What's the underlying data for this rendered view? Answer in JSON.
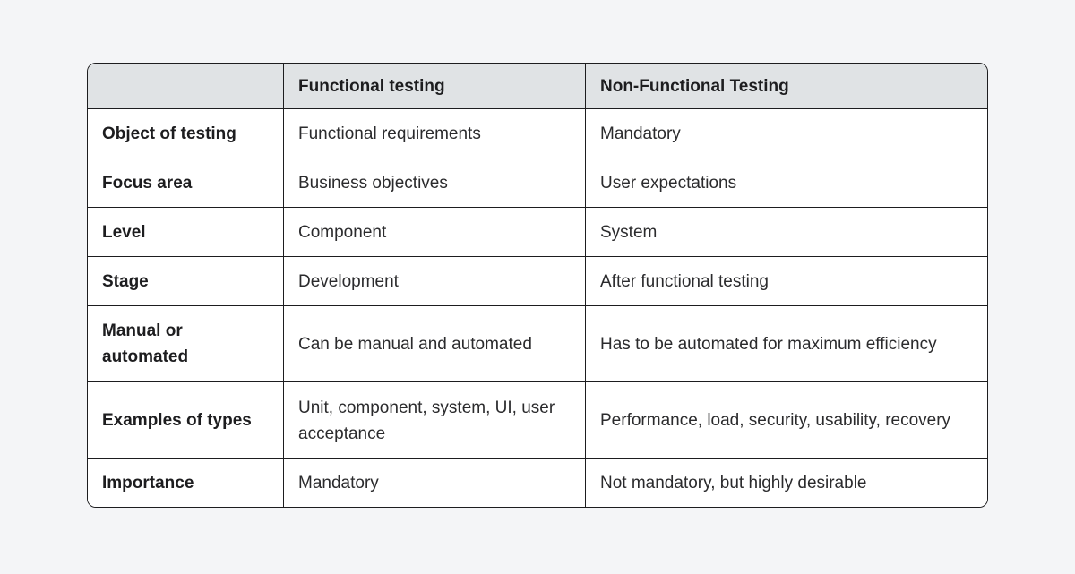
{
  "colors": {
    "page_background": "#f4f5f7",
    "table_background": "#ffffff",
    "header_background": "#e0e3e5",
    "border": "#1d1d1f",
    "text_bold": "#1d1d1f",
    "text_regular": "#2b2b2d"
  },
  "chart_data": {
    "type": "table",
    "columns": [
      "",
      "Functional testing",
      "Non-Functional Testing"
    ],
    "rows": [
      [
        "Object of testing",
        "Functional requirements",
        "Mandatory"
      ],
      [
        "Focus area",
        "Business objectives",
        "User expectations"
      ],
      [
        "Level",
        "Component",
        "System"
      ],
      [
        "Stage",
        "Development",
        "After functional testing"
      ],
      [
        "Manual or automated",
        "Can be manual and automated",
        "Has to be automated for maximum efficiency"
      ],
      [
        "Examples of types",
        "Unit, component, system, UI, user acceptance",
        "Performance, load, security, usability, recovery"
      ],
      [
        "Importance",
        "Mandatory",
        "Not mandatory, but highly desirable"
      ]
    ]
  }
}
